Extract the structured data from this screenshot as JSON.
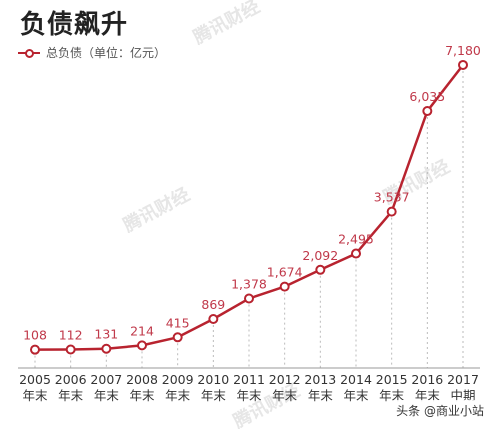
{
  "header": {
    "title": "负债飙升",
    "legend_label": "总负债（单位：亿元）"
  },
  "watermark_text": "腾讯财经",
  "footer_badge": "头条 @商业小站",
  "colors": {
    "line": "#b8232f",
    "label": "#c0394a",
    "axis_text": "#333333",
    "grid": "#bbbbbb"
  },
  "chart_data": {
    "type": "line",
    "title": "负债飙升",
    "series": [
      {
        "name": "总负债（单位：亿元）",
        "values": [
          108,
          112,
          131,
          214,
          415,
          869,
          1378,
          1674,
          2092,
          2495,
          3537,
          6035,
          7180
        ]
      }
    ],
    "value_labels": [
      "108",
      "112",
      "131",
      "214",
      "415",
      "869",
      "1,378",
      "1,674",
      "2,092",
      "2,495",
      "3,537",
      "6,035",
      "7,180"
    ],
    "categories": [
      "2005",
      "2006",
      "2007",
      "2008",
      "2009",
      "2010",
      "2011",
      "2012",
      "2013",
      "2014",
      "2015",
      "2016",
      "2017"
    ],
    "category_sublabels": [
      "年末",
      "年末",
      "年末",
      "年末",
      "年末",
      "年末",
      "年末",
      "年末",
      "年末",
      "年末",
      "年末",
      "年末",
      "中期"
    ],
    "ylim": [
      0,
      7800
    ],
    "grid": "vertical-dashed",
    "legend_position": "top-left"
  }
}
